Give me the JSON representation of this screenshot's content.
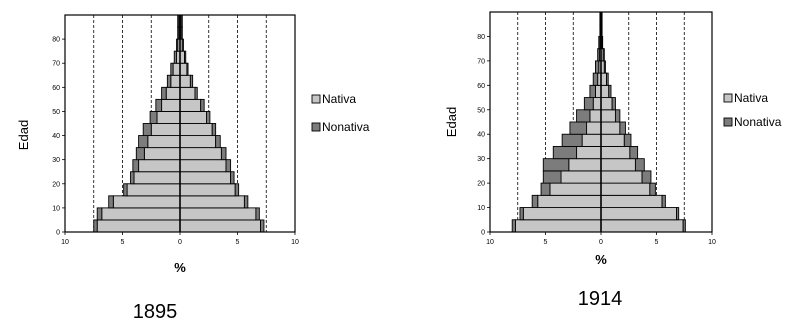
{
  "colors": {
    "nativa": "#c6c6c6",
    "nonativa": "#7c7c7c",
    "bar_stroke": "#000000",
    "grid": "#000000"
  },
  "chart_data": [
    {
      "type": "bar",
      "orientation": "horizontal",
      "layout": "population-pyramid",
      "caption": "1895",
      "xlabel": "%",
      "ylabel": "Edad",
      "xlim": [
        -10,
        10
      ],
      "xticks": [
        10,
        5,
        0,
        5,
        10
      ],
      "ylim": [
        0,
        90
      ],
      "yticks": [
        0,
        10,
        20,
        30,
        40,
        50,
        60,
        70,
        80
      ],
      "grid": "vertical dashed",
      "legend_position": "right",
      "age_groups": [
        0,
        5,
        10,
        15,
        20,
        25,
        30,
        35,
        40,
        45,
        50,
        55,
        60,
        65,
        70,
        75,
        80,
        85
      ],
      "series": [
        {
          "name": "Nativa",
          "side": "left",
          "values": [
            7.2,
            6.8,
            5.8,
            4.6,
            4.0,
            3.6,
            3.1,
            2.8,
            2.5,
            2.0,
            1.6,
            1.2,
            0.8,
            0.6,
            0.3,
            0.2,
            0.1,
            0.1
          ]
        },
        {
          "name": "Nonativa",
          "side": "left",
          "values": [
            0.3,
            0.4,
            0.4,
            0.3,
            0.3,
            0.5,
            0.7,
            0.8,
            0.7,
            0.6,
            0.5,
            0.4,
            0.3,
            0.2,
            0.2,
            0.1,
            0.1,
            0.1
          ]
        },
        {
          "name": "Nativa",
          "side": "right",
          "values": [
            7.0,
            6.6,
            5.6,
            4.8,
            4.4,
            4.0,
            3.6,
            3.1,
            2.8,
            2.3,
            1.8,
            1.3,
            0.9,
            0.6,
            0.4,
            0.2,
            0.1,
            0.1
          ]
        },
        {
          "name": "Nonativa",
          "side": "right",
          "values": [
            0.3,
            0.3,
            0.3,
            0.3,
            0.3,
            0.4,
            0.4,
            0.4,
            0.3,
            0.3,
            0.3,
            0.2,
            0.2,
            0.1,
            0.1,
            0.1,
            0.1,
            0.1
          ]
        }
      ]
    },
    {
      "type": "bar",
      "orientation": "horizontal",
      "layout": "population-pyramid",
      "caption": "1914",
      "xlabel": "%",
      "ylabel": "Edad",
      "xlim": [
        -10,
        10
      ],
      "xticks": [
        10,
        5,
        0,
        5,
        10
      ],
      "ylim": [
        0,
        90
      ],
      "yticks": [
        0,
        10,
        20,
        30,
        40,
        50,
        60,
        70,
        80
      ],
      "grid": "vertical dashed",
      "legend_position": "right",
      "age_groups": [
        0,
        5,
        10,
        15,
        20,
        25,
        30,
        35,
        40,
        45,
        50,
        55,
        60,
        65,
        70,
        75,
        80,
        85
      ],
      "series": [
        {
          "name": "Nativa",
          "side": "left",
          "values": [
            7.7,
            7.0,
            5.7,
            4.6,
            3.6,
            2.9,
            2.2,
            1.7,
            1.3,
            1.0,
            0.7,
            0.5,
            0.3,
            0.2,
            0.15,
            0.1,
            0.05,
            0.05
          ]
        },
        {
          "name": "Nonativa",
          "side": "left",
          "values": [
            0.3,
            0.3,
            0.5,
            0.8,
            1.6,
            2.3,
            2.1,
            1.8,
            1.5,
            1.2,
            0.8,
            0.5,
            0.4,
            0.3,
            0.15,
            0.1,
            0.05,
            0.05
          ]
        },
        {
          "name": "Nativa",
          "side": "right",
          "values": [
            7.4,
            6.8,
            5.5,
            4.4,
            3.7,
            3.1,
            2.6,
            2.1,
            1.7,
            1.3,
            1.0,
            0.7,
            0.5,
            0.3,
            0.2,
            0.1,
            0.05,
            0.05
          ]
        },
        {
          "name": "Nonativa",
          "side": "right",
          "values": [
            0.2,
            0.2,
            0.3,
            0.5,
            0.8,
            0.8,
            0.7,
            0.6,
            0.5,
            0.4,
            0.3,
            0.2,
            0.15,
            0.1,
            0.1,
            0.05,
            0.05,
            0.05
          ]
        }
      ]
    }
  ]
}
